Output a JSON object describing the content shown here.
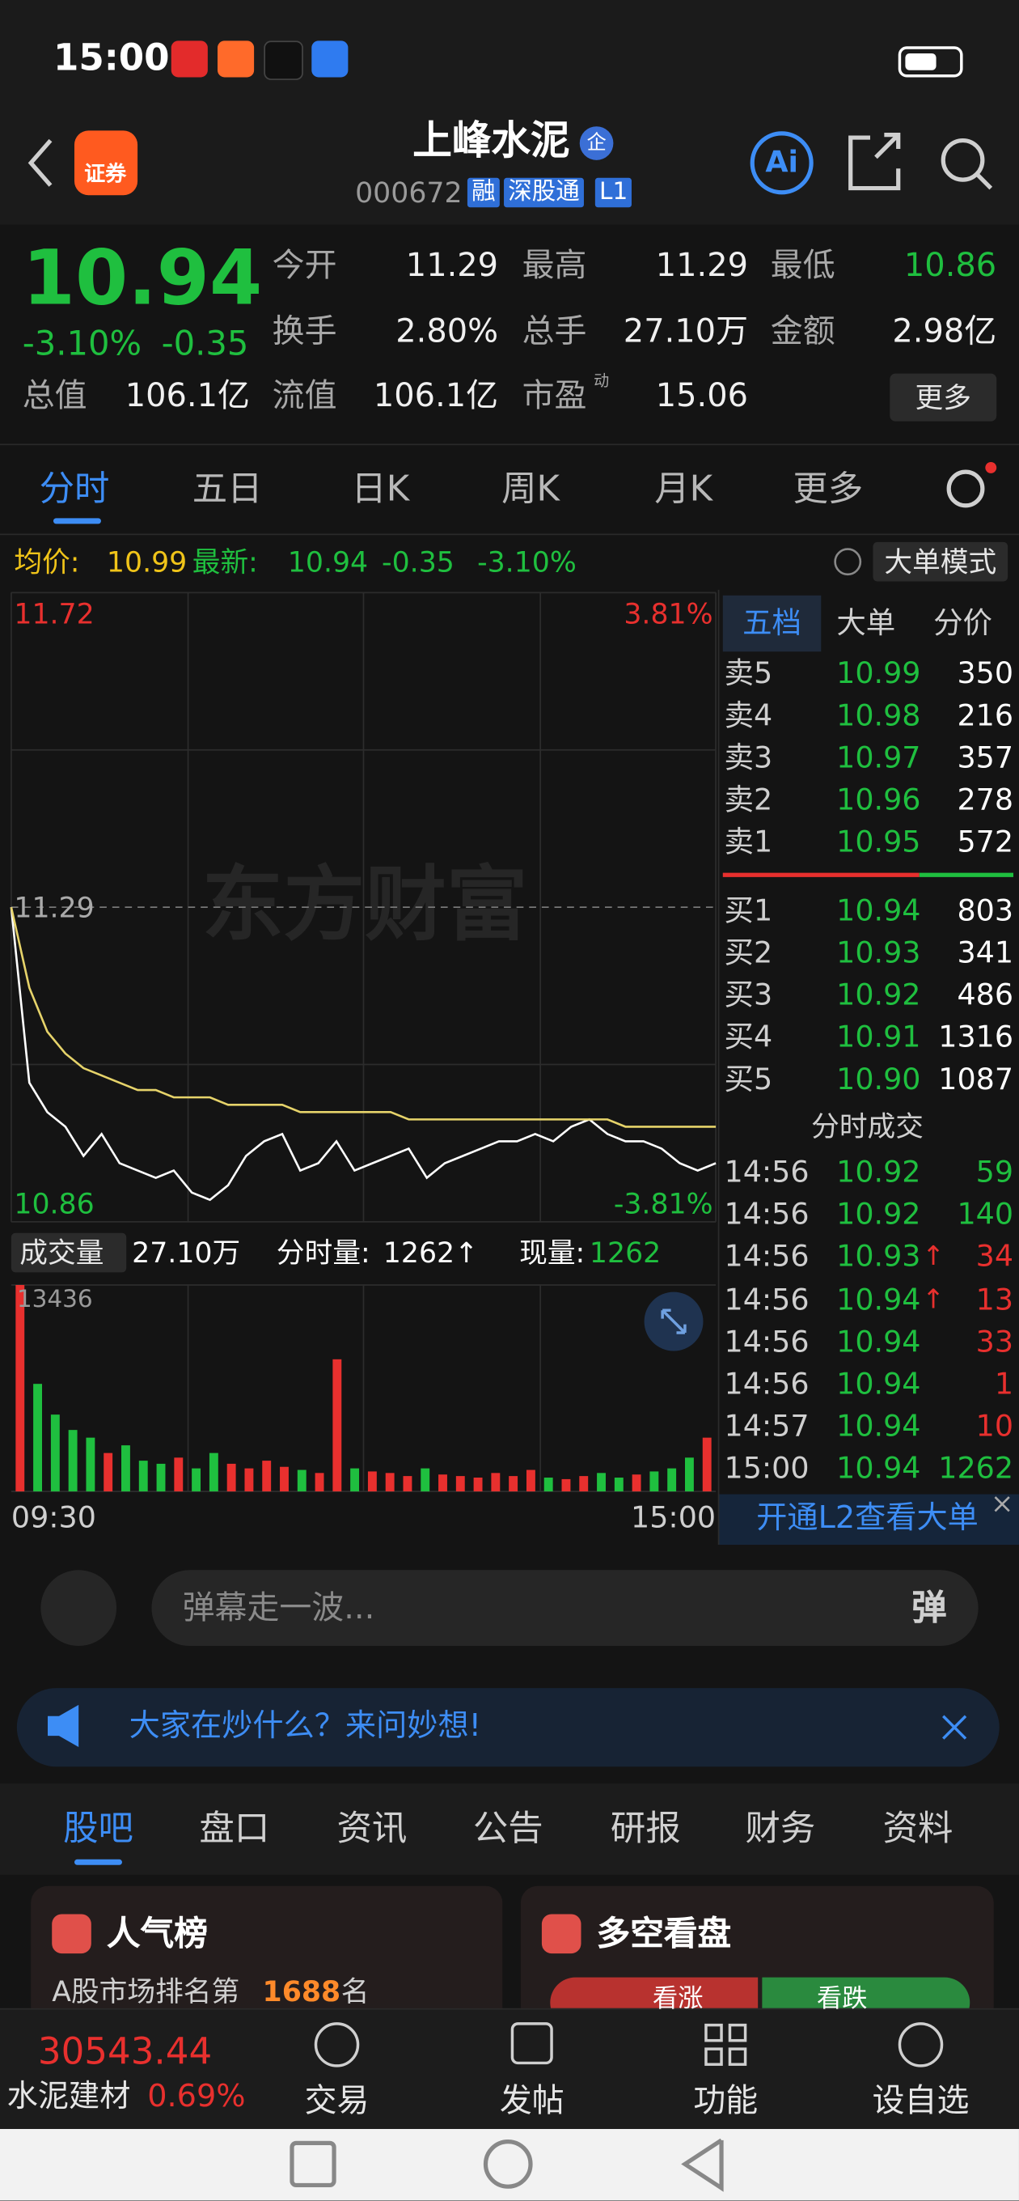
{
  "status_bar": {
    "time": "15:00"
  },
  "header": {
    "app_icon": "证券",
    "name": "上峰水泥",
    "badge": "企",
    "code": "000672",
    "tags": [
      "融",
      "深股通",
      "L1"
    ],
    "ai": "Ai"
  },
  "quote": {
    "price": "10.94",
    "change_pct": "-3.10%",
    "change": "-0.35",
    "stats": [
      {
        "label": "今开",
        "value": "11.29"
      },
      {
        "label": "最高",
        "value": "11.29"
      },
      {
        "label": "最低",
        "value": "10.86"
      },
      {
        "label": "换手",
        "value": "2.80%"
      },
      {
        "label": "总手",
        "value": "27.10万"
      },
      {
        "label": "金额",
        "value": "2.98亿"
      },
      {
        "label": "总值",
        "value": "106.1亿"
      },
      {
        "label": "流值",
        "value": "106.1亿"
      },
      {
        "label": "市盈",
        "value": "15.06"
      }
    ],
    "pe_sup": "动",
    "more": "更多"
  },
  "tabs": [
    "分时",
    "五日",
    "日K",
    "周K",
    "月K",
    "更多"
  ],
  "info_bar": {
    "avg_label": "均价:",
    "avg": "10.99",
    "latest_label": "最新:",
    "latest": "10.94",
    "change": "-0.35",
    "change_pct": "-3.10%",
    "mode": "大单模式"
  },
  "watermark": "东方财富",
  "chart_data": [
    {
      "type": "line",
      "categories": [
        "09:30",
        null,
        null,
        null,
        null,
        null,
        null,
        null,
        null,
        null,
        null,
        null,
        null,
        null,
        null,
        null,
        null,
        null,
        null,
        null,
        null,
        null,
        null,
        null,
        null,
        null,
        null,
        null,
        null,
        null,
        null,
        null,
        null,
        null,
        null,
        null,
        null,
        null,
        null,
        "15:00"
      ],
      "series": [
        {
          "color": "#ffffff",
          "values": [
            11.29,
            11.05,
            11.01,
            10.99,
            10.95,
            10.98,
            10.94,
            10.93,
            10.92,
            10.93,
            10.9,
            10.89,
            10.91,
            10.95,
            10.97,
            10.98,
            10.93,
            10.94,
            10.97,
            10.93,
            10.94,
            10.95,
            10.96,
            10.92,
            10.94,
            10.95,
            10.96,
            10.97,
            10.97,
            10.98,
            10.97,
            10.99,
            11.0,
            10.98,
            10.97,
            10.97,
            10.96,
            10.94,
            10.93,
            10.94
          ]
        },
        {
          "color": "#e6d36a",
          "values": [
            11.29,
            11.18,
            11.12,
            11.09,
            11.07,
            11.06,
            11.05,
            11.04,
            11.04,
            11.03,
            11.03,
            11.03,
            11.02,
            11.02,
            11.02,
            11.02,
            11.01,
            11.01,
            11.01,
            11.01,
            11.01,
            11.01,
            11.0,
            11.0,
            11.0,
            11.0,
            11.0,
            11.0,
            11.0,
            11.0,
            11.0,
            11.0,
            11.0,
            11.0,
            10.99,
            10.99,
            10.99,
            10.99,
            10.99,
            10.99
          ]
        }
      ],
      "ylim": [
        10.86,
        11.72
      ],
      "yticks": [
        10.86,
        11.29,
        11.72
      ],
      "y2lim": [
        -3.81,
        3.81
      ],
      "y2ticks": [
        {
          "value": -3.81,
          "label": "-3.81%"
        },
        {
          "value": 3.81,
          "label": "3.81%"
        }
      ]
    },
    {
      "type": "bar",
      "categories": [
        null,
        null,
        null,
        null,
        null,
        null,
        null,
        null,
        null,
        null,
        null,
        null,
        null,
        null,
        null,
        null,
        null,
        null,
        null,
        null,
        null,
        null,
        null,
        null,
        null,
        null,
        null,
        null,
        null,
        null,
        null,
        null,
        null,
        null,
        null,
        null,
        null,
        null,
        null,
        null
      ],
      "values": [
        13436,
        7000,
        5000,
        4000,
        3500,
        2500,
        3000,
        2000,
        1800,
        2200,
        1500,
        2500,
        1800,
        1500,
        2000,
        1600,
        1400,
        1200,
        8600,
        1500,
        1300,
        1200,
        1000,
        1500,
        1100,
        1000,
        900,
        1200,
        1000,
        1400,
        900,
        800,
        1000,
        1200,
        900,
        1100,
        1300,
        1500,
        2200,
        3500
      ],
      "colors": [
        "#e8302e",
        "#1fbf3f",
        "#1fbf3f",
        "#1fbf3f",
        "#1fbf3f",
        "#e8302e",
        "#1fbf3f",
        "#1fbf3f",
        "#1fbf3f",
        "#e8302e",
        "#1fbf3f",
        "#1fbf3f",
        "#e8302e",
        "#e8302e",
        "#e8302e",
        "#e8302e",
        "#1fbf3f",
        "#e8302e",
        "#e8302e",
        "#1fbf3f",
        "#e8302e",
        "#e8302e",
        "#e8302e",
        "#1fbf3f",
        "#e8302e",
        "#e8302e",
        "#e8302e",
        "#e8302e",
        "#e8302e",
        "#e8302e",
        "#1fbf3f",
        "#e8302e",
        "#e8302e",
        "#1fbf3f",
        "#1fbf3f",
        "#e8302e",
        "#1fbf3f",
        "#1fbf3f",
        "#1fbf3f",
        "#e8302e"
      ],
      "ylim": [
        0,
        13436
      ],
      "yticks": [
        13436
      ]
    }
  ],
  "volume_bar": {
    "label": "成交量",
    "total": "27.10万",
    "period_label": "分时量:",
    "period": "1262↑",
    "current_label": "现量:",
    "current": "1262"
  },
  "order_book": {
    "tabs": [
      "五档",
      "大单",
      "分价"
    ],
    "asks": [
      {
        "label": "卖5",
        "price": "10.99",
        "volume": "350"
      },
      {
        "label": "卖4",
        "price": "10.98",
        "volume": "216"
      },
      {
        "label": "卖3",
        "price": "10.97",
        "volume": "357"
      },
      {
        "label": "卖2",
        "price": "10.96",
        "volume": "278"
      },
      {
        "label": "卖1",
        "price": "10.95",
        "volume": "572"
      }
    ],
    "bids": [
      {
        "label": "买1",
        "price": "10.94",
        "volume": "803"
      },
      {
        "label": "买2",
        "price": "10.93",
        "volume": "341"
      },
      {
        "label": "买3",
        "price": "10.92",
        "volume": "486"
      },
      {
        "label": "买4",
        "price": "10.91",
        "volume": "1316"
      },
      {
        "label": "买5",
        "price": "10.90",
        "volume": "1087"
      }
    ],
    "trades_title": "分时成交",
    "trades": [
      {
        "time": "14:56",
        "price": "10.92",
        "volume": "59",
        "color": "#1fbf3f"
      },
      {
        "time": "14:56",
        "price": "10.92",
        "volume": "140",
        "color": "#1fbf3f"
      },
      {
        "time": "14:56",
        "price": "10.93",
        "arrow": "↑",
        "volume": "34",
        "color": "#e8302e"
      },
      {
        "time": "14:56",
        "price": "10.94",
        "arrow": "↑",
        "volume": "13",
        "color": "#e8302e"
      },
      {
        "time": "14:56",
        "price": "10.94",
        "volume": "33",
        "color": "#e8302e"
      },
      {
        "time": "14:56",
        "price": "10.94",
        "volume": "1",
        "color": "#e8302e"
      },
      {
        "time": "14:57",
        "price": "10.94",
        "volume": "10",
        "color": "#e8302e"
      },
      {
        "time": "15:00",
        "price": "10.94",
        "volume": "1262",
        "color": "#1fbf3f"
      }
    ],
    "l2": "开通L2查看大单"
  },
  "danmaku": {
    "placeholder": "弹幕走一波...",
    "button": "弹"
  },
  "banner": "大家在炒什么？来问妙想!",
  "bottom_tabs": [
    "股吧",
    "盘口",
    "资讯",
    "公告",
    "研报",
    "财务",
    "资料"
  ],
  "cards": {
    "popularity": {
      "title": "人气榜",
      "text": "A股市场排名第",
      "rank": "1688",
      "suffix": "名"
    },
    "sentiment": {
      "title": "多空看盘",
      "bull": "看涨",
      "bear": "看跌"
    }
  },
  "bottom_nav": {
    "index_value": "30543.44",
    "sector": "水泥建材",
    "sector_change": "0.69%",
    "items": [
      "交易",
      "发帖",
      "功能",
      "设自选"
    ]
  }
}
